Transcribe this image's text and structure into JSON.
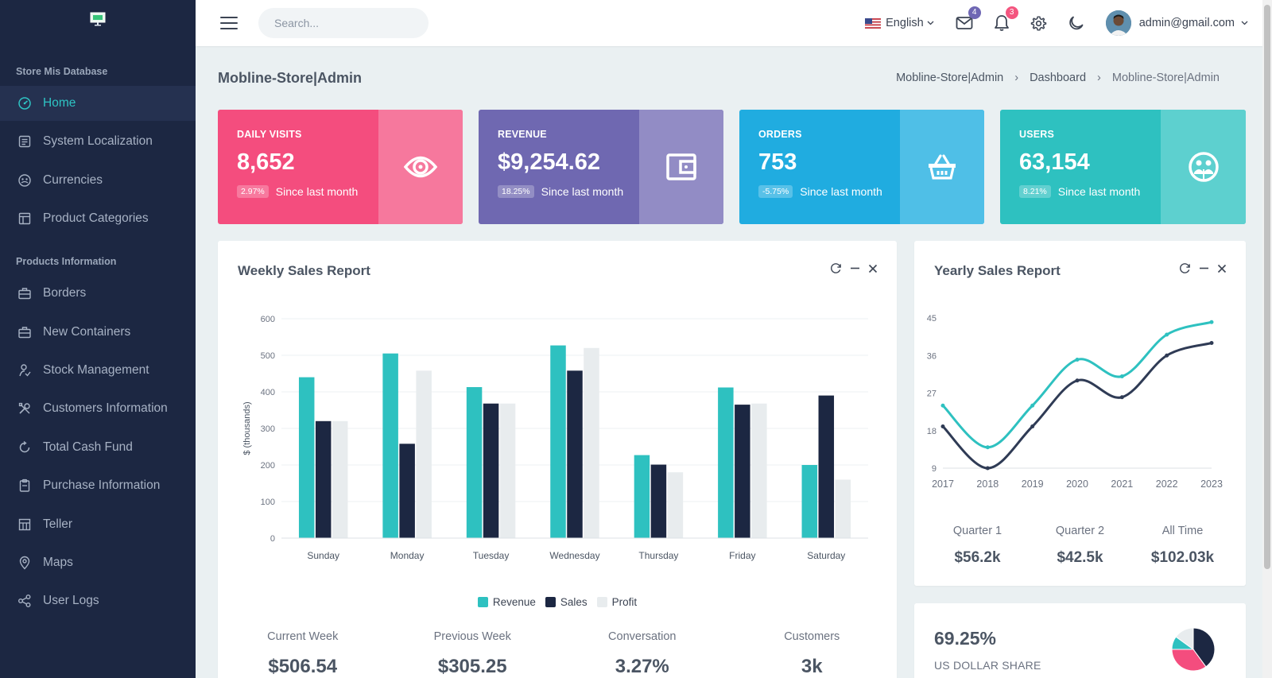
{
  "sidebar": {
    "section1": "Store Mis Database",
    "section2": "Products Information",
    "items1": [
      {
        "label": "Home",
        "icon": "dashboard-icon"
      },
      {
        "label": "System Localization",
        "icon": "list-icon"
      },
      {
        "label": "Currencies",
        "icon": "globe-icon"
      },
      {
        "label": "Product Categories",
        "icon": "layout-icon"
      }
    ],
    "items2": [
      {
        "label": "Borders",
        "icon": "briefcase-icon"
      },
      {
        "label": "New Containers",
        "icon": "briefcase-icon"
      },
      {
        "label": "Stock Management",
        "icon": "person-icon"
      },
      {
        "label": "Customers Information",
        "icon": "tools-icon"
      },
      {
        "label": "Total Cash Fund",
        "icon": "refresh-icon"
      },
      {
        "label": "Purchase Information",
        "icon": "clipboard-icon"
      },
      {
        "label": "Teller",
        "icon": "table-icon"
      },
      {
        "label": "Maps",
        "icon": "map-pin-icon"
      },
      {
        "label": "User Logs",
        "icon": "share-icon"
      }
    ]
  },
  "topbar": {
    "search_placeholder": "Search...",
    "language": "English",
    "mail_count": "4",
    "notif_count": "3",
    "user": "admin@gmail.com"
  },
  "page": {
    "title": "Mobline-Store|Admin",
    "breadcrumb": [
      "Mobline-Store|Admin",
      "Dashboard",
      "Mobline-Store|Admin"
    ]
  },
  "stats": [
    {
      "label": "DAILY VISITS",
      "value": "8,652",
      "pct": "2.97%",
      "since": "Since last month",
      "icon": "eye-icon"
    },
    {
      "label": "REVENUE",
      "value": "$9,254.62",
      "pct": "18.25%",
      "since": "Since last month",
      "icon": "wallet-icon"
    },
    {
      "label": "ORDERS",
      "value": "753",
      "pct": "-5.75%",
      "since": "Since last month",
      "icon": "basket-icon"
    },
    {
      "label": "USERS",
      "value": "63,154",
      "pct": "8.21%",
      "since": "Since last month",
      "icon": "users-icon"
    }
  ],
  "colors": {
    "revenue": "#2ec1c0",
    "sales": "#1c2742",
    "profit": "#e8ecee",
    "sidebar": "#1c2742",
    "accent": "#2ec4c4"
  },
  "weekly": {
    "title": "Weekly Sales Report",
    "stats": [
      {
        "label": "Current Week",
        "value": "$506.54"
      },
      {
        "label": "Previous Week",
        "value": "$305.25"
      },
      {
        "label": "Conversation",
        "value": "3.27%"
      },
      {
        "label": "Customers",
        "value": "3k"
      }
    ]
  },
  "yearly": {
    "title": "Yearly Sales Report",
    "stats": [
      {
        "label": "Quarter 1",
        "value": "$56.2k"
      },
      {
        "label": "Quarter 2",
        "value": "$42.5k"
      },
      {
        "label": "All Time",
        "value": "$102.03k"
      }
    ]
  },
  "share": {
    "value": "69.25%",
    "label": "US DOLLAR SHARE"
  },
  "chart_data": [
    {
      "type": "bar",
      "title": "Weekly Sales Report",
      "ylabel": "$ (thousands)",
      "ylim": [
        0,
        600
      ],
      "yticks": [
        0,
        100,
        200,
        300,
        400,
        500,
        600
      ],
      "categories": [
        "Sunday",
        "Monday",
        "Tuesday",
        "Wednesday",
        "Thursday",
        "Friday",
        "Saturday"
      ],
      "series": [
        {
          "name": "Revenue",
          "color": "#2ec1c0",
          "values": [
            440,
            505,
            413,
            527,
            227,
            412,
            200
          ]
        },
        {
          "name": "Sales",
          "color": "#1c2742",
          "values": [
            320,
            258,
            368,
            458,
            201,
            365,
            390
          ]
        },
        {
          "name": "Profit",
          "color": "#e8ecee",
          "values": [
            320,
            458,
            368,
            520,
            180,
            368,
            160
          ]
        }
      ],
      "legend": "bottom",
      "grid": true
    },
    {
      "type": "line",
      "title": "Yearly Sales Report",
      "x": [
        "2017",
        "2018",
        "2019",
        "2020",
        "2021",
        "2022",
        "2023"
      ],
      "ylim": [
        9,
        45
      ],
      "yticks": [
        9,
        18,
        27,
        36,
        45
      ],
      "series": [
        {
          "color": "#2ec1c0",
          "values": [
            24,
            14,
            24,
            35,
            31,
            41,
            44
          ]
        },
        {
          "color": "#2f3b55",
          "values": [
            19,
            9,
            19,
            30,
            26,
            36,
            39
          ]
        }
      ],
      "grid": false
    },
    {
      "type": "pie",
      "values": [
        40,
        35,
        10,
        15
      ],
      "colors": [
        "#1c2742",
        "#f44d7e",
        "#2ec1c0",
        "#e8ecee"
      ]
    }
  ]
}
